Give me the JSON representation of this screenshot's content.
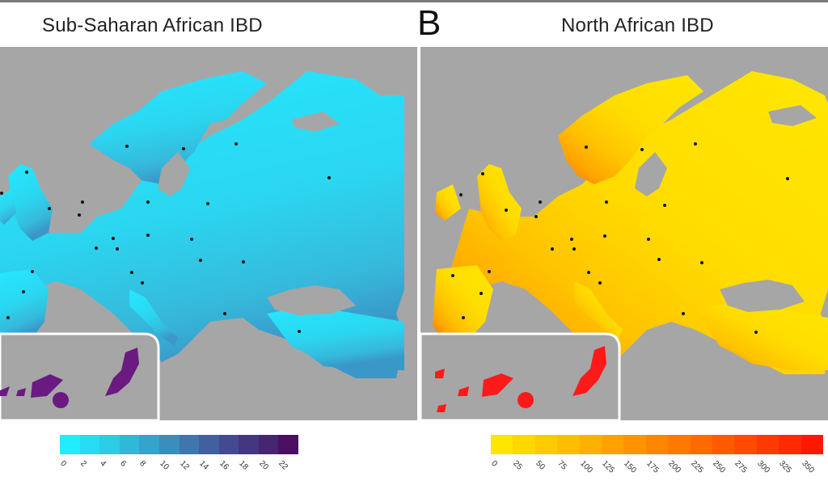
{
  "panel_b": {
    "letter": "B"
  },
  "panels": [
    {
      "title": "Sub-Saharan African IBD",
      "legend": {
        "ticks": [
          "0",
          "2",
          "4",
          "6",
          "8",
          "10",
          "12",
          "14",
          "16",
          "18",
          "20",
          "22"
        ],
        "colors": [
          "#22ecff",
          "#26dcf2",
          "#2ccbe6",
          "#31b8d9",
          "#35a3cb",
          "#3a8dbd",
          "#3f76ae",
          "#425f9f",
          "#444a90",
          "#453681",
          "#462571",
          "#4a0f60"
        ]
      },
      "colors": {
        "land": "#25e8ff",
        "gradient": [
          "#2bd6f0",
          "#36b8db",
          "#3a98c9"
        ],
        "islands": "#6a1a80"
      }
    },
    {
      "title": "North African IBD",
      "legend": {
        "ticks": [
          "0",
          "25",
          "50",
          "75",
          "100",
          "125",
          "150",
          "175",
          "200",
          "225",
          "250",
          "275",
          "300",
          "325",
          "350"
        ],
        "colors": [
          "#ffe500",
          "#ffd800",
          "#ffca00",
          "#ffbd00",
          "#ffb000",
          "#ffa200",
          "#ff9400",
          "#ff8600",
          "#ff7800",
          "#ff6900",
          "#ff5a00",
          "#ff4a00",
          "#ff3a00",
          "#ff2a00",
          "#ff1800"
        ]
      },
      "colors": {
        "land": "#ffe600",
        "gradient": [
          "#ffd300",
          "#ffbb00",
          "#ff8a00"
        ],
        "islands": "#ff1a1a"
      }
    }
  ],
  "colors": {
    "sea": "#a6a6a6",
    "sample_point": "#111111"
  }
}
